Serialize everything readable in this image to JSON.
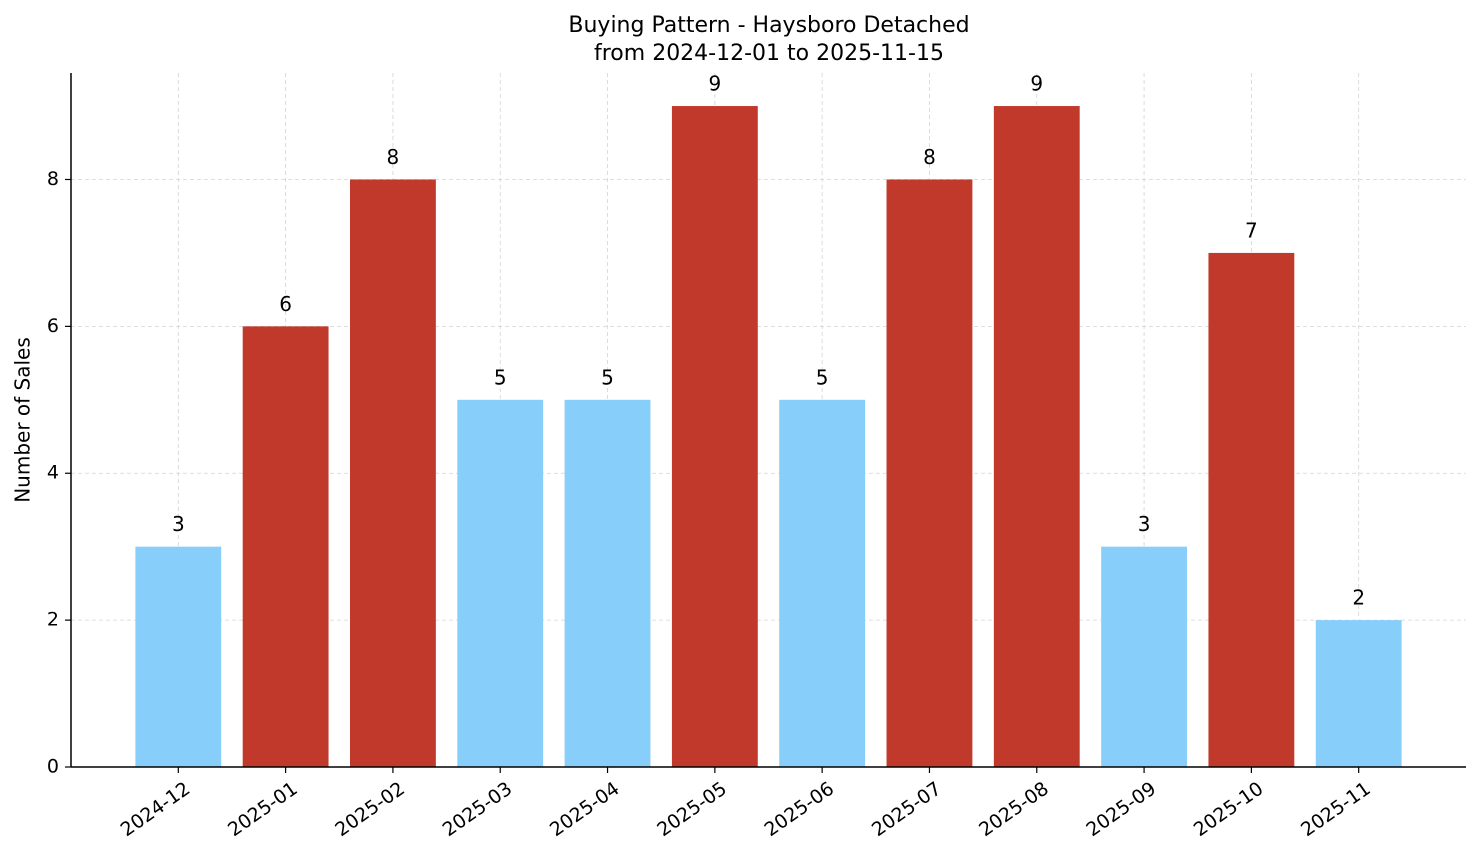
{
  "chart_data": {
    "type": "bar",
    "title": "Buying Pattern - Haysboro Detached",
    "subtitle": "from 2024-12-01 to 2025-11-15",
    "y_label": "Number of Sales",
    "categories": [
      "2024-12",
      "2025-01",
      "2025-02",
      "2025-03",
      "2025-04",
      "2025-05",
      "2025-06",
      "2025-07",
      "2025-08",
      "2025-09",
      "2025-10",
      "2025-11"
    ],
    "values": [
      3,
      6,
      8,
      5,
      5,
      9,
      5,
      8,
      9,
      3,
      7,
      2
    ],
    "colors": [
      "#87cefa",
      "#c0392b",
      "#c0392b",
      "#87cefa",
      "#87cefa",
      "#c0392b",
      "#87cefa",
      "#c0392b",
      "#c0392b",
      "#87cefa",
      "#c0392b",
      "#87cefa"
    ],
    "ylim": [
      0,
      9.45
    ],
    "yticks": [
      0,
      2,
      4,
      6,
      8
    ],
    "grid": true
  }
}
